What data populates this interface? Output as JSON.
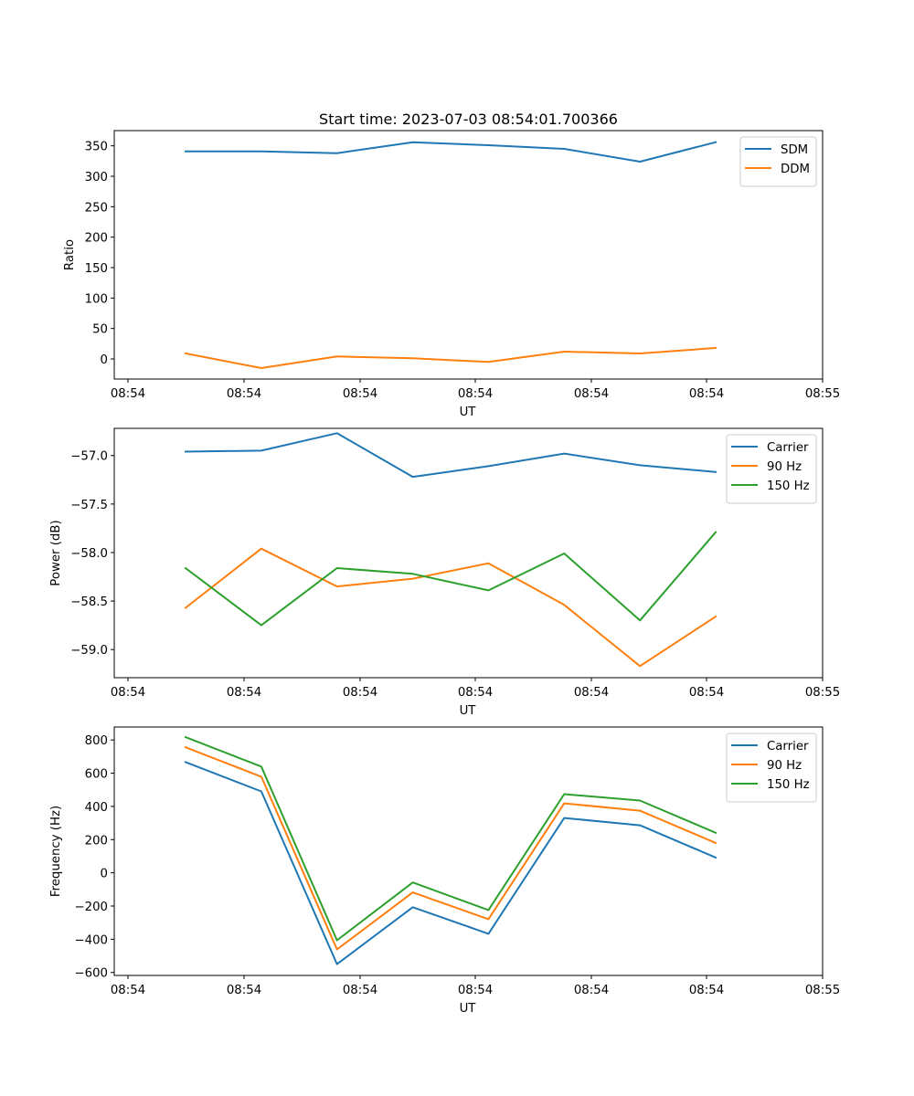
{
  "figure_title": "Start time: 2023-07-03 08:54:01.700366",
  "chart_data": [
    {
      "type": "line",
      "title": "Start time: 2023-07-03 08:54:01.700366",
      "xlabel": "UT",
      "ylabel": "Ratio",
      "x_index": [
        0,
        1,
        2,
        3,
        4,
        5,
        6,
        7
      ],
      "xlim": [
        -0.77,
        8.43
      ],
      "xticks": [
        -0.77,
        0.76,
        2.28,
        3.8,
        5.32,
        6.85,
        8.37,
        9.9
      ],
      "xtick_labels": [
        "08:54",
        "08:54",
        "08:54",
        "08:54",
        "08:54",
        "08:54",
        "08:54",
        "08:55"
      ],
      "ylim": [
        -33,
        375
      ],
      "yticks": [
        0,
        50,
        100,
        150,
        200,
        250,
        300,
        350
      ],
      "ytick_labels": [
        "0",
        "50",
        "100",
        "150",
        "200",
        "250",
        "300",
        "350"
      ],
      "legend_position": "top-right",
      "grid": false,
      "series": [
        {
          "name": "SDM",
          "color": "#1f77b4",
          "values": [
            341,
            341,
            338,
            356,
            351,
            345,
            324,
            356
          ]
        },
        {
          "name": "DDM",
          "color": "#ff7f0e",
          "values": [
            9,
            -15,
            4,
            1,
            -5,
            12,
            9,
            18
          ]
        }
      ]
    },
    {
      "type": "line",
      "title": "",
      "xlabel": "UT",
      "ylabel": "Power (dB)",
      "x_index": [
        0,
        1,
        2,
        3,
        4,
        5,
        6,
        7
      ],
      "xlim": [
        -0.77,
        8.43
      ],
      "xticks": [
        -0.77,
        0.76,
        2.28,
        3.8,
        5.32,
        6.85,
        8.37,
        9.9
      ],
      "xtick_labels": [
        "08:54",
        "08:54",
        "08:54",
        "08:54",
        "08:54",
        "08:54",
        "08:54",
        "08:55"
      ],
      "ylim": [
        -59.29,
        -56.72
      ],
      "yticks": [
        -59.0,
        -58.5,
        -58.0,
        -57.5,
        -57.0
      ],
      "ytick_labels": [
        "−59.0",
        "−58.5",
        "−58.0",
        "−57.5",
        "−57.0"
      ],
      "legend_position": "top-right",
      "grid": false,
      "series": [
        {
          "name": "Carrier",
          "color": "#1f77b4",
          "values": [
            -56.96,
            -56.95,
            -56.77,
            -57.22,
            -57.11,
            -56.98,
            -57.1,
            -57.17
          ]
        },
        {
          "name": "90 Hz",
          "color": "#ff7f0e",
          "values": [
            -58.57,
            -57.96,
            -58.35,
            -58.27,
            -58.11,
            -58.54,
            -59.17,
            -58.66
          ]
        },
        {
          "name": "150 Hz",
          "color": "#2ca02c",
          "values": [
            -58.16,
            -58.75,
            -58.16,
            -58.22,
            -58.39,
            -58.01,
            -58.7,
            -57.79
          ]
        }
      ]
    },
    {
      "type": "line",
      "title": "",
      "xlabel": "UT",
      "ylabel": "Frequency (Hz)",
      "x_index": [
        0,
        1,
        2,
        3,
        4,
        5,
        6,
        7
      ],
      "xlim": [
        -0.77,
        8.43
      ],
      "xticks": [
        -0.77,
        0.76,
        2.28,
        3.8,
        5.32,
        6.85,
        8.37,
        9.9
      ],
      "xtick_labels": [
        "08:54",
        "08:54",
        "08:54",
        "08:54",
        "08:54",
        "08:54",
        "08:54",
        "08:55"
      ],
      "ylim": [
        -618,
        878
      ],
      "yticks": [
        -600,
        -400,
        -200,
        0,
        200,
        400,
        600,
        800
      ],
      "ytick_labels": [
        "−600",
        "−400",
        "−200",
        "0",
        "200",
        "400",
        "600",
        "800"
      ],
      "legend_position": "top-right",
      "grid": false,
      "series": [
        {
          "name": "Carrier",
          "color": "#1f77b4",
          "values": [
            667,
            490,
            -550,
            -207,
            -367,
            330,
            286,
            92
          ]
        },
        {
          "name": "90 Hz",
          "color": "#ff7f0e",
          "values": [
            756,
            579,
            -461,
            -118,
            -279,
            418,
            374,
            180
          ]
        },
        {
          "name": "150 Hz",
          "color": "#2ca02c",
          "values": [
            817,
            640,
            -406,
            -58,
            -224,
            474,
            435,
            241
          ]
        }
      ]
    }
  ]
}
